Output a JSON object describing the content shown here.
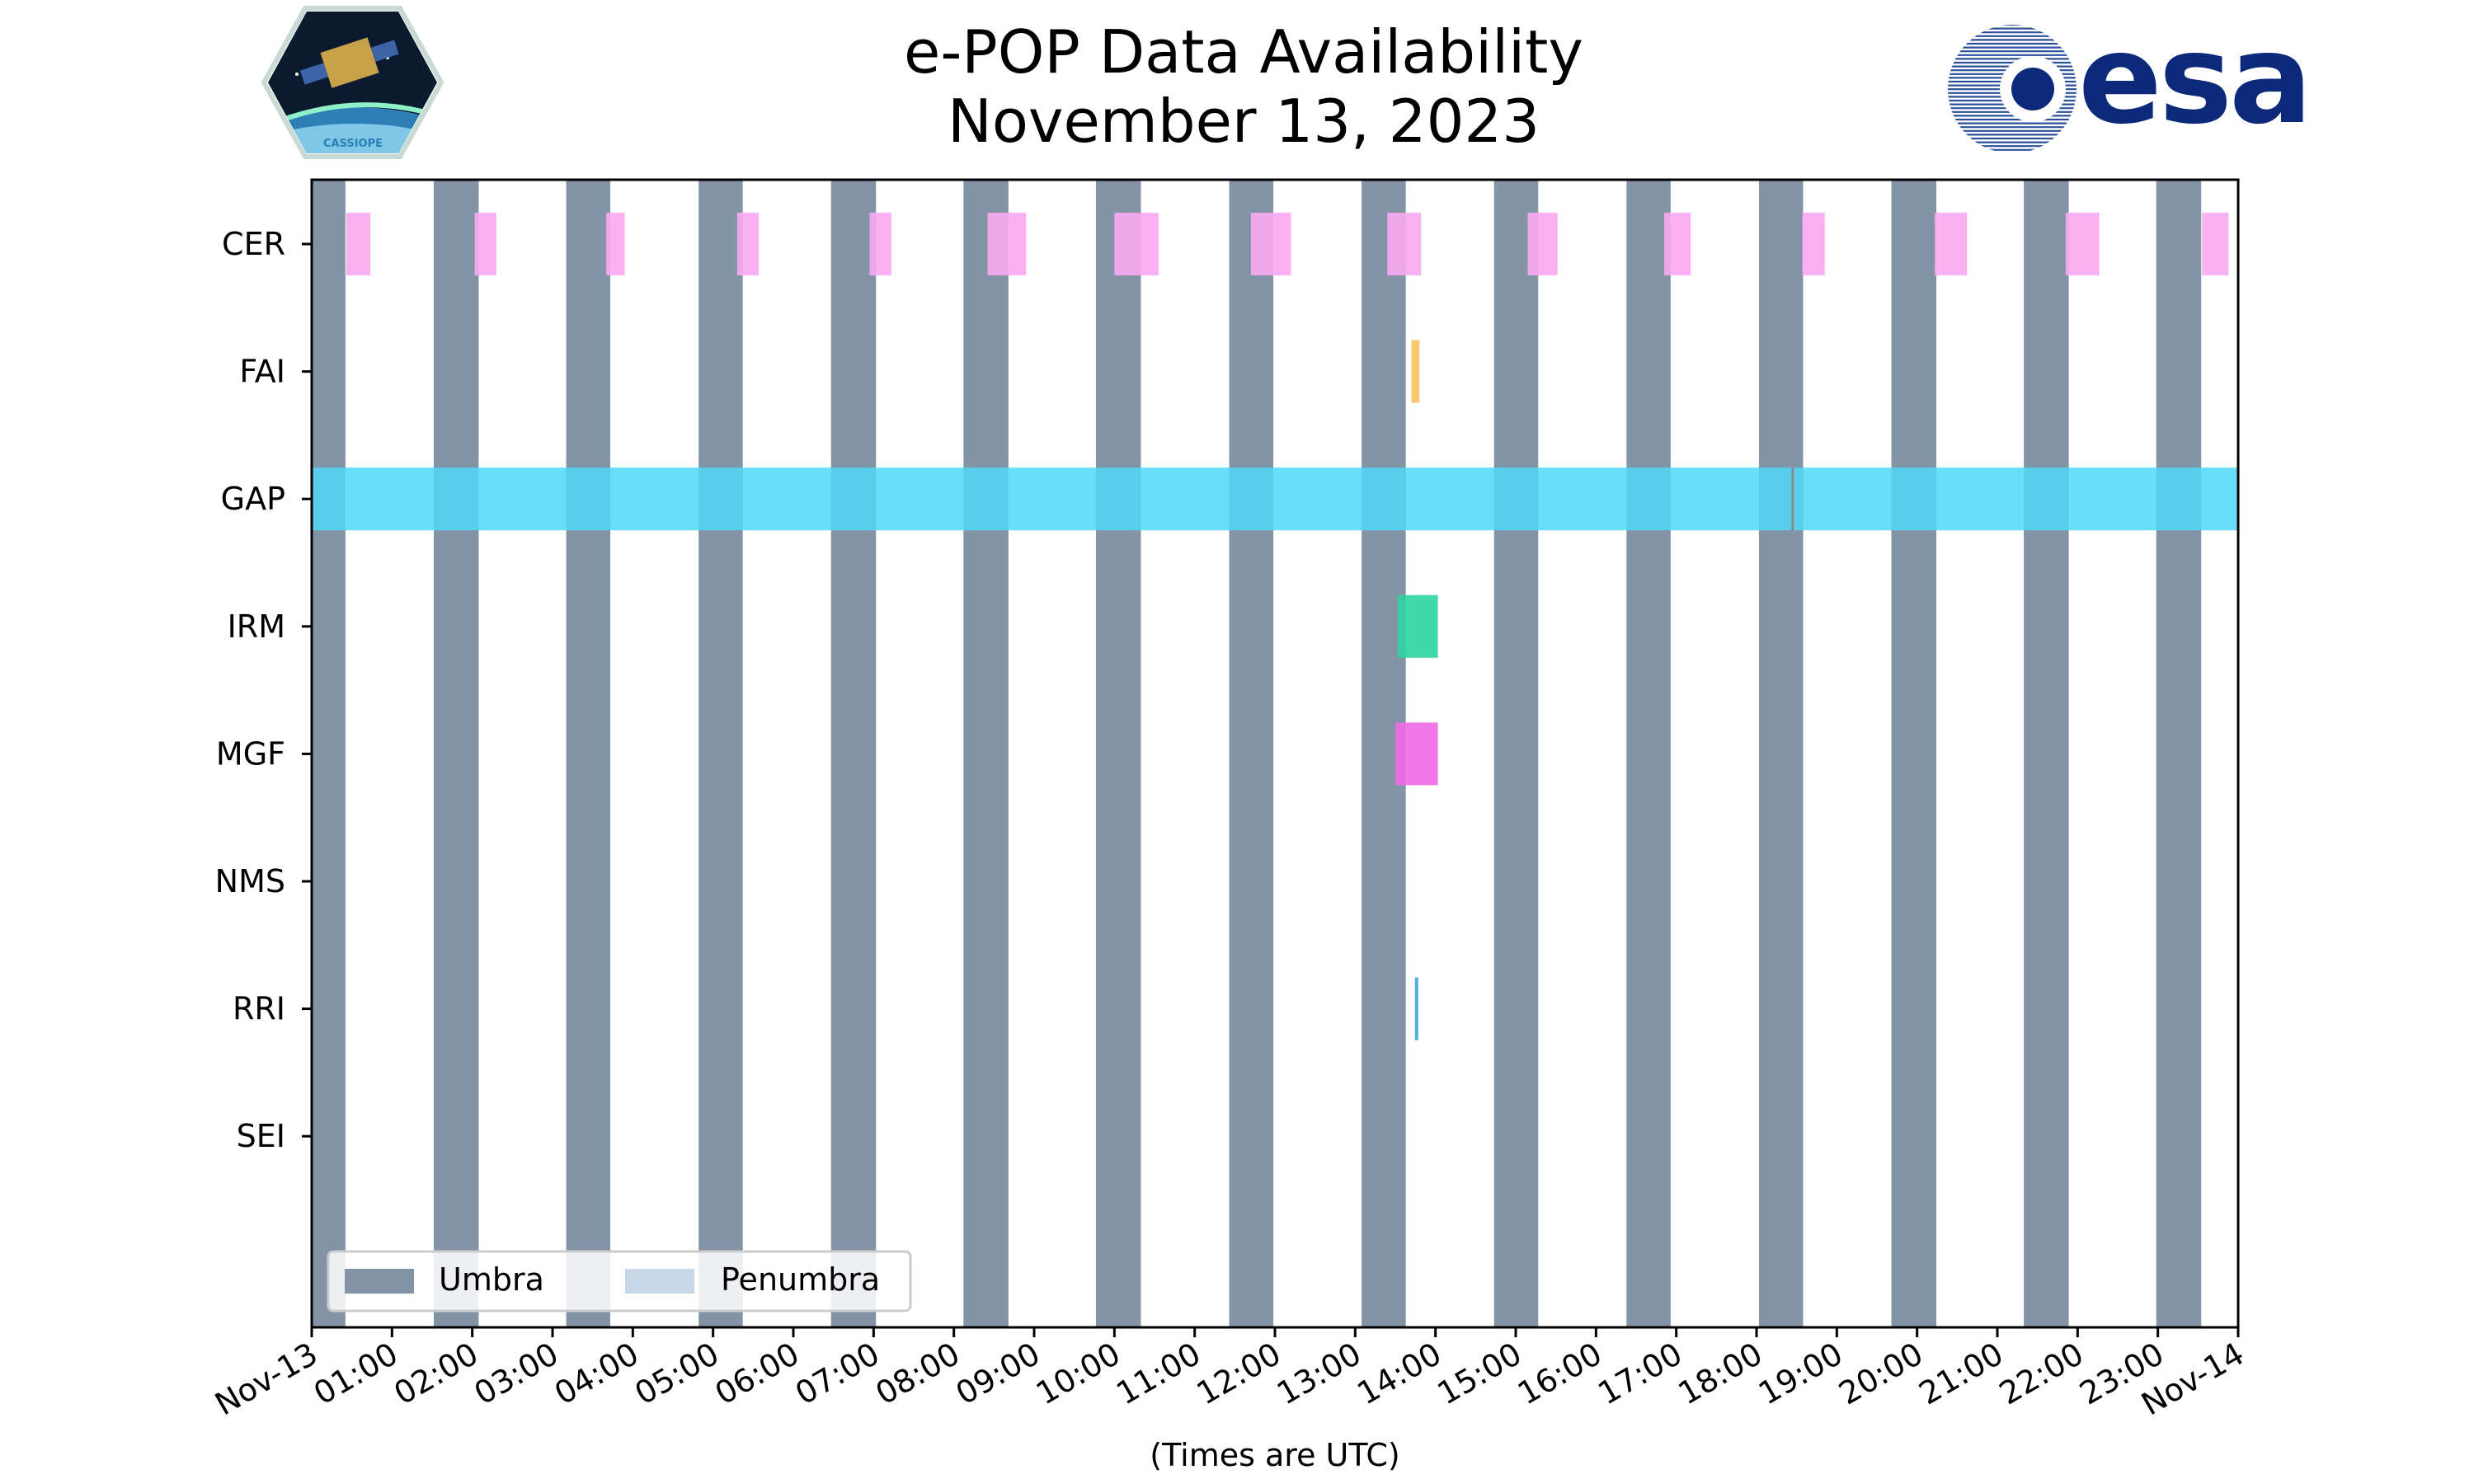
{
  "chart_data": {
    "type": "timeline",
    "title": "e-POP Data Availability",
    "subtitle": "November 13, 2023",
    "xlabel": "(Times are UTC)",
    "x_range_hours": [
      0,
      24
    ],
    "x_tick_labels": [
      "Nov-13",
      "01:00",
      "02:00",
      "03:00",
      "04:00",
      "05:00",
      "06:00",
      "07:00",
      "08:00",
      "09:00",
      "10:00",
      "11:00",
      "12:00",
      "13:00",
      "14:00",
      "15:00",
      "16:00",
      "17:00",
      "18:00",
      "19:00",
      "20:00",
      "21:00",
      "22:00",
      "23:00",
      "Nov-14"
    ],
    "instruments": [
      "CER",
      "FAI",
      "GAP",
      "IRM",
      "MGF",
      "NMS",
      "RRI",
      "SEI"
    ],
    "instrument_colors": {
      "CER": "#F9A8F0",
      "FAI": "#F8C35E",
      "GAP": "#4DD8F8",
      "IRM": "#2DD4A0",
      "MGF": "#EE6AE4",
      "NMS": "#888888",
      "RRI": "#39A8DA",
      "SEI": "#888888"
    },
    "umbra_color": "#8494A7",
    "penumbra_color": "#C9D6E6",
    "legend": {
      "position": "lower-left",
      "entries": [
        "Umbra",
        "Penumbra"
      ]
    },
    "umbra_periods": [
      [
        0.0,
        0.42
      ],
      [
        1.52,
        2.08
      ],
      [
        3.17,
        3.72
      ],
      [
        4.82,
        5.37
      ],
      [
        6.47,
        7.03
      ],
      [
        8.12,
        8.68
      ],
      [
        9.77,
        10.33
      ],
      [
        11.43,
        11.98
      ],
      [
        13.08,
        13.63
      ],
      [
        14.73,
        15.28
      ],
      [
        16.38,
        16.93
      ],
      [
        18.03,
        18.58
      ],
      [
        19.68,
        20.24
      ],
      [
        21.33,
        21.89
      ],
      [
        22.98,
        23.54
      ]
    ],
    "data_periods": {
      "CER": [
        [
          0.43,
          0.73
        ],
        [
          2.03,
          2.3
        ],
        [
          3.67,
          3.9
        ],
        [
          5.3,
          5.57
        ],
        [
          6.95,
          7.22
        ],
        [
          8.42,
          8.9
        ],
        [
          10.0,
          10.55
        ],
        [
          11.7,
          12.2
        ],
        [
          13.4,
          13.82
        ],
        [
          15.15,
          15.52
        ],
        [
          16.85,
          17.18
        ],
        [
          18.57,
          18.85
        ],
        [
          20.22,
          20.62
        ],
        [
          21.85,
          22.27
        ],
        [
          23.55,
          23.88
        ]
      ],
      "FAI": [
        [
          13.7,
          13.8
        ]
      ],
      "GAP": [
        [
          0.0,
          24.0
        ]
      ],
      "IRM": [
        [
          13.53,
          14.03
        ]
      ],
      "MGF": [
        [
          13.5,
          14.03
        ]
      ],
      "NMS": [],
      "RRI": [
        [
          13.75,
          13.78
        ]
      ],
      "SEI": []
    },
    "gap_markers_hours": [
      18.45
    ]
  },
  "logos": {
    "cassiope_label": "CASSIOPE",
    "esa_label": "esa"
  }
}
